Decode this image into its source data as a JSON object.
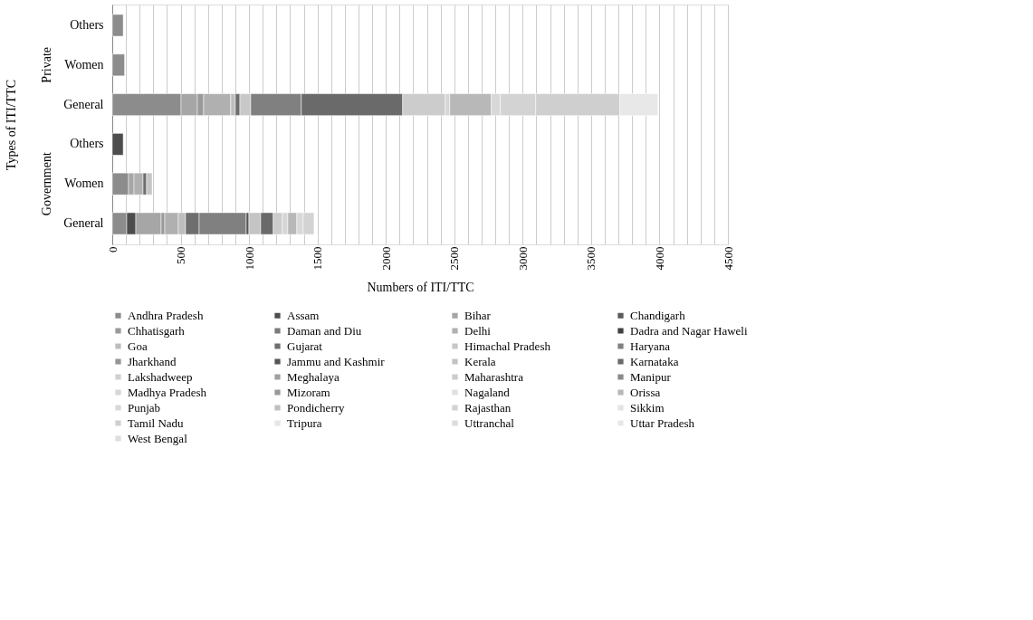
{
  "chart_data": {
    "type": "bar",
    "orientation": "horizontal",
    "stacked": true,
    "xlabel": "Numbers of ITI/TTC",
    "ylabel": "Types of ITI/TTC",
    "categories": [
      "Others",
      "Women",
      "General",
      "Others",
      "Women",
      "General"
    ],
    "annotations": [
      "Private",
      "Government"
    ],
    "xlim": [
      0,
      4500
    ],
    "xticks": [
      0,
      {
        "value": 100,
        "label": null
      },
      {
        "value": 200,
        "label": null
      },
      {
        "value": 300,
        "label": null
      },
      {
        "value": 400,
        "label": null
      },
      500,
      {
        "value": 600,
        "label": null
      },
      {
        "value": 700,
        "label": null
      },
      {
        "value": 800,
        "label": null
      },
      {
        "value": 900,
        "label": null
      },
      1000,
      {
        "value": 1100,
        "label": null
      },
      {
        "value": 1200,
        "label": null
      },
      {
        "value": 1300,
        "label": null
      },
      {
        "value": 1400,
        "label": null
      },
      1500,
      {
        "value": 1600,
        "label": null
      },
      {
        "value": 1700,
        "label": null
      },
      {
        "value": 1800,
        "label": null
      },
      {
        "value": 1900,
        "label": null
      },
      2000,
      {
        "value": 2100,
        "label": null
      },
      {
        "value": 2200,
        "label": null
      },
      {
        "value": 2300,
        "label": null
      },
      {
        "value": 2400,
        "label": null
      },
      2500,
      {
        "value": 2600,
        "label": null
      },
      {
        "value": 2700,
        "label": null
      },
      {
        "value": 2800,
        "label": null
      },
      {
        "value": 2900,
        "label": null
      },
      3000,
      {
        "value": 3100,
        "label": null
      },
      {
        "value": 3200,
        "label": null
      },
      {
        "value": 3300,
        "label": null
      },
      {
        "value": 3400,
        "label": null
      },
      3500,
      {
        "value": 3600,
        "label": null
      },
      {
        "value": 3700,
        "label": null
      },
      {
        "value": 3800,
        "label": null
      },
      {
        "value": 3900,
        "label": null
      },
      4000,
      {
        "value": 4100,
        "label": null
      },
      {
        "value": 4200,
        "label": null
      },
      {
        "value": 4300,
        "label": null
      },
      {
        "value": 4400,
        "label": null
      },
      4500
    ],
    "grid": "x",
    "legend": "bottom",
    "series": [
      {
        "name": "Andhra Pradesh",
        "color": "#8c8c8c",
        "values": [
          80,
          90,
          503,
          null,
          119,
          106
        ]
      },
      {
        "name": "Assam",
        "color": "#4d4d4d",
        "values": [
          null,
          null,
          null,
          80,
          null,
          66
        ]
      },
      {
        "name": "Bihar",
        "color": "#a6a6a6",
        "values": [
          null,
          null,
          119,
          null,
          40,
          185
        ]
      },
      {
        "name": "Chandigarh",
        "color": "#5a5a5a",
        "values": [
          null,
          null,
          null,
          null,
          null,
          null
        ]
      },
      {
        "name": "Chhatisgarh",
        "color": "#9a9a9a",
        "values": [
          null,
          null,
          46,
          null,
          null,
          27
        ]
      },
      {
        "name": "Daman and Diu",
        "color": "#7a7a7a",
        "values": [
          null,
          null,
          null,
          null,
          null,
          null
        ]
      },
      {
        "name": "Delhi",
        "color": "#b0b0b0",
        "values": [
          null,
          null,
          198,
          null,
          66,
          99
        ]
      },
      {
        "name": "Dadra and Nagar Haweli",
        "color": "#404040",
        "values": [
          null,
          null,
          null,
          null,
          null,
          null
        ]
      },
      {
        "name": "Goa",
        "color": "#bdbdbd",
        "values": [
          null,
          null,
          33,
          null,
          null,
          53
        ]
      },
      {
        "name": "Gujarat",
        "color": "#6e6e6e",
        "values": [
          null,
          null,
          34,
          null,
          26,
          99
        ]
      },
      {
        "name": "Himachal Pradesh",
        "color": "#c8c8c8",
        "values": [
          null,
          null,
          79,
          null,
          null,
          null
        ]
      },
      {
        "name": "Haryana",
        "color": "#808080",
        "values": [
          null,
          null,
          370,
          null,
          null,
          344
        ]
      },
      {
        "name": "Jharkhand",
        "color": "#959595",
        "values": [
          null,
          null,
          null,
          null,
          null,
          null
        ]
      },
      {
        "name": "Jammu and Kashmir",
        "color": "#555555",
        "values": [
          null,
          null,
          null,
          null,
          null,
          20
        ]
      },
      {
        "name": "Kerala",
        "color": "#c4c4c4",
        "values": [
          null,
          null,
          null,
          null,
          40,
          86
        ]
      },
      {
        "name": "Karnataka",
        "color": "#6a6a6a",
        "values": [
          null,
          null,
          741,
          null,
          null,
          92
        ]
      },
      {
        "name": "Lakshadweep",
        "color": "#d0d0d0",
        "values": [
          null,
          null,
          null,
          null,
          null,
          null
        ]
      },
      {
        "name": "Meghalaya",
        "color": "#a0a0a0",
        "values": [
          null,
          null,
          null,
          null,
          null,
          null
        ]
      },
      {
        "name": "Maharashtra",
        "color": "#cccccc",
        "values": [
          null,
          null,
          311,
          null,
          null,
          66
        ]
      },
      {
        "name": "Manipur",
        "color": "#8a8a8a",
        "values": [
          null,
          null,
          null,
          null,
          null,
          null
        ]
      },
      {
        "name": "Madhya Pradesh",
        "color": "#d6d6d6",
        "values": [
          null,
          null,
          33,
          null,
          null,
          40
        ]
      },
      {
        "name": "Mizoram",
        "color": "#999999",
        "values": [
          null,
          null,
          null,
          null,
          null,
          null
        ]
      },
      {
        "name": "Nagaland",
        "color": "#e0e0e0",
        "values": [
          null,
          null,
          null,
          null,
          null,
          null
        ]
      },
      {
        "name": "Orissa",
        "color": "#b8b8b8",
        "values": [
          null,
          null,
          304,
          null,
          null,
          66
        ]
      },
      {
        "name": "Punjab",
        "color": "#d8d8d8",
        "values": [
          null,
          null,
          66,
          null,
          null,
          47
        ]
      },
      {
        "name": "Pondicherry",
        "color": "#c0c0c0",
        "values": [
          null,
          null,
          null,
          null,
          null,
          null
        ]
      },
      {
        "name": "Rajasthan",
        "color": "#d3d3d3",
        "values": [
          null,
          null,
          258,
          null,
          null,
          79
        ]
      },
      {
        "name": "Sikkim",
        "color": "#e4e4e4",
        "values": [
          null,
          null,
          null,
          null,
          null,
          null
        ]
      },
      {
        "name": "Tamil Nadu",
        "color": "#cfcfcf",
        "values": [
          null,
          null,
          615,
          null,
          null,
          null
        ]
      },
      {
        "name": "Tripura",
        "color": "#e6e6e6",
        "values": [
          null,
          null,
          null,
          null,
          null,
          null
        ]
      },
      {
        "name": "Uttranchal",
        "color": "#dcdcdc",
        "values": [
          null,
          null,
          null,
          null,
          null,
          null
        ]
      },
      {
        "name": "Uttar Pradesh",
        "color": "#e8e8e8",
        "values": [
          null,
          null,
          278,
          null,
          null,
          null
        ]
      },
      {
        "name": "West Bengal",
        "color": "#dedede",
        "values": [
          null,
          null,
          null,
          null,
          null,
          null
        ]
      }
    ]
  }
}
